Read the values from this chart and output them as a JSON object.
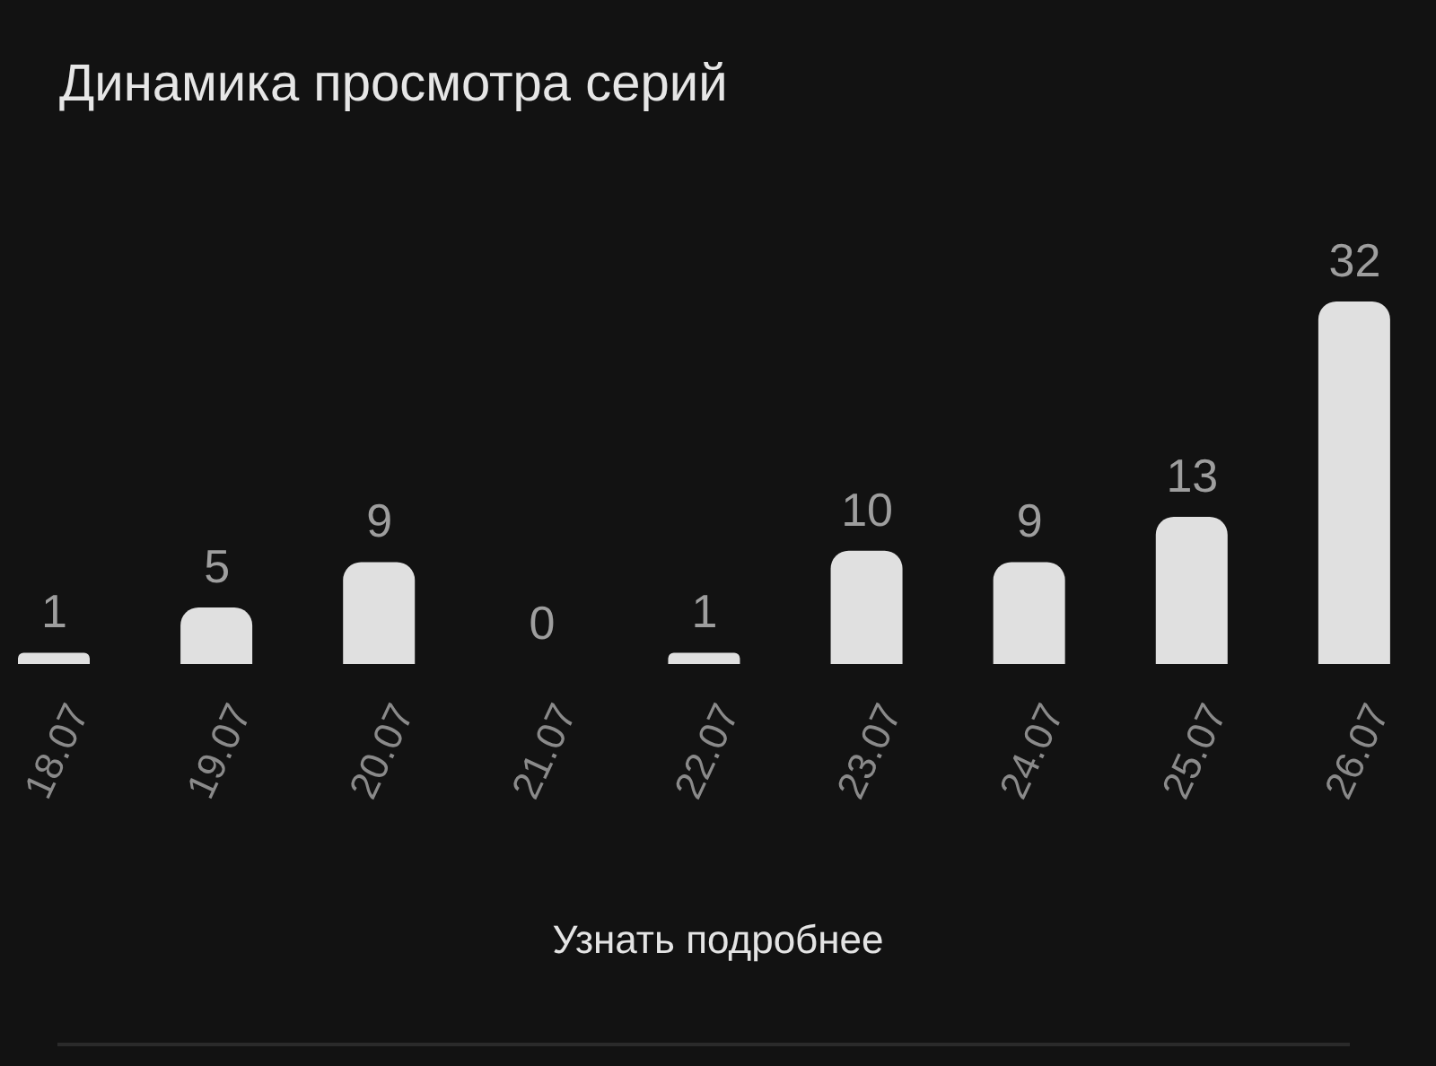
{
  "chart_data": {
    "type": "bar",
    "title": "Динамика просмотра серий",
    "categories": [
      "18.07",
      "19.07",
      "20.07",
      "21.07",
      "22.07",
      "23.07",
      "24.07",
      "25.07",
      "26.07"
    ],
    "values": [
      1,
      5,
      9,
      0,
      1,
      10,
      9,
      13,
      32
    ],
    "color": "#e0e0e0",
    "data_labels": true,
    "annotations": [
      "Узнать подробнее"
    ]
  }
}
